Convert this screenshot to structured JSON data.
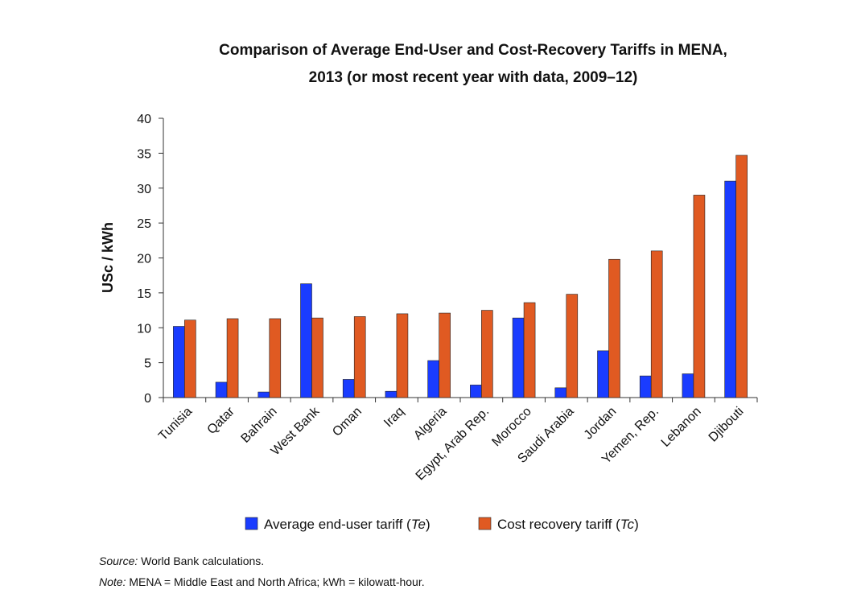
{
  "chart_data": {
    "type": "bar",
    "title_lines": [
      "Comparison of Average End-User and Cost-Recovery Tariffs in MENA,",
      "2013 (or most recent year with data, 2009–12)"
    ],
    "ylabel": "USc / kWh",
    "xlabel": "",
    "ylim": [
      0,
      40
    ],
    "yticks": [
      0,
      5,
      10,
      15,
      20,
      25,
      30,
      35,
      40
    ],
    "categories": [
      "Tunisia",
      "Qatar",
      "Bahrain",
      "West Bank",
      "Oman",
      "Iraq",
      "Algeria",
      "Egypt, Arab Rep.",
      "Morocco",
      "Saudi Arabia",
      "Jordan",
      "Yemen, Rep.",
      "Lebanon",
      "Djibouti"
    ],
    "series": [
      {
        "name": "Average end-user tariff",
        "name_symbol": "Te",
        "color": "#1a3cff",
        "values": [
          10.2,
          2.2,
          0.8,
          16.3,
          2.6,
          0.9,
          5.3,
          1.8,
          11.4,
          1.4,
          6.7,
          3.1,
          3.4,
          31.0
        ]
      },
      {
        "name": "Cost recovery tariff",
        "name_symbol": "Tc",
        "color": "#e05a22",
        "values": [
          11.1,
          11.3,
          11.3,
          11.4,
          11.6,
          12.0,
          12.1,
          12.5,
          13.6,
          14.8,
          19.8,
          21.0,
          29.0,
          34.7
        ]
      }
    ],
    "legend_position": "bottom",
    "grid": false
  },
  "footer": {
    "source_label": "Source:",
    "source_text": " World Bank calculations.",
    "note_label": "Note:",
    "note_text": " MENA = Middle East and North Africa; kWh = kilowatt-hour."
  }
}
